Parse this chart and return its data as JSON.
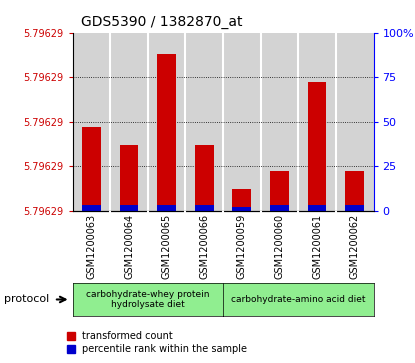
{
  "title": "GDS5390 / 1382870_at",
  "samples": [
    "GSM1200063",
    "GSM1200064",
    "GSM1200065",
    "GSM1200066",
    "GSM1200059",
    "GSM1200060",
    "GSM1200061",
    "GSM1200062"
  ],
  "red_values": [
    47,
    37,
    88,
    37,
    12,
    22,
    72,
    22
  ],
  "blue_values": [
    3,
    3,
    3,
    3,
    2,
    3,
    3,
    3
  ],
  "yticks_left": [
    0,
    25,
    50,
    75,
    100
  ],
  "ytick_labels_left": [
    "5.79629",
    "5.79629",
    "5.79629",
    "5.79629",
    "5.79629"
  ],
  "yticks_right": [
    0,
    25,
    50,
    75,
    100
  ],
  "ytick_labels_right": [
    "0",
    "25",
    "50",
    "75",
    "100%"
  ],
  "group1_label": "carbohydrate-whey protein\nhydrolysate diet",
  "group2_label": "carbohydrate-amino acid diet",
  "group1_color": "#90EE90",
  "group2_color": "#90EE90",
  "bar_bg_color": "#d3d3d3",
  "red_color": "#cc0000",
  "blue_color": "#0000cc",
  "protocol_label": "protocol",
  "legend_red": "transformed count",
  "legend_blue": "percentile rank within the sample",
  "fig_bg": "#ffffff",
  "bar_width": 0.5
}
